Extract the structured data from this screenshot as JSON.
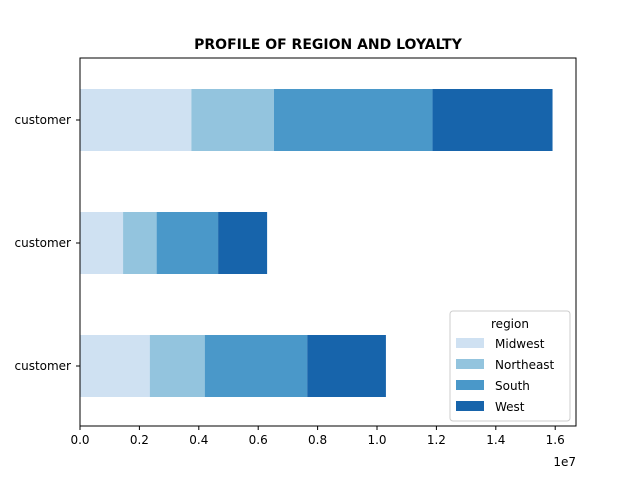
{
  "chart_data": {
    "type": "bar",
    "orientation": "horizontal",
    "stacked": true,
    "title": "PROFILE OF REGION AND LOYALTY",
    "xlabel": "",
    "ylabel": "",
    "x_offset_label": "1e7",
    "xlim": [
      0,
      16700000
    ],
    "x_ticks": [
      0,
      2000000,
      4000000,
      6000000,
      8000000,
      10000000,
      12000000,
      14000000,
      16000000
    ],
    "x_tick_labels": [
      "0.0",
      "0.2",
      "0.4",
      "0.6",
      "0.8",
      "1.0",
      "1.2",
      "1.4",
      "1.6"
    ],
    "categories": [
      "customer",
      "customer",
      "customer"
    ],
    "series": [
      {
        "name": "Midwest",
        "color": "#cfe1f2",
        "values": [
          3750000,
          1450000,
          2350000
        ]
      },
      {
        "name": "Northeast",
        "color": "#93c4de",
        "values": [
          2780000,
          1130000,
          1850000
        ]
      },
      {
        "name": "South",
        "color": "#4a98c9",
        "values": [
          5340000,
          2070000,
          3450000
        ]
      },
      {
        "name": "West",
        "color": "#1764ab",
        "values": [
          4040000,
          1650000,
          2650000
        ]
      }
    ],
    "legend": {
      "title": "region",
      "placement": "lower-right"
    },
    "grid": false
  }
}
